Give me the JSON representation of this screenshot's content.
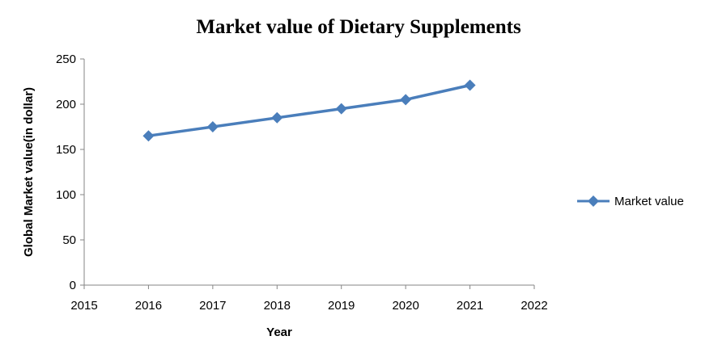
{
  "chart_data": {
    "type": "line",
    "title": "Market value of Dietary Supplements",
    "xlabel": "Year",
    "ylabel": "Global Market value(in dollar)",
    "xlim": [
      2015,
      2022
    ],
    "ylim": [
      0,
      250
    ],
    "x_ticks": [
      2015,
      2016,
      2017,
      2018,
      2019,
      2020,
      2021,
      2022
    ],
    "y_ticks": [
      0,
      50,
      100,
      150,
      200,
      250
    ],
    "grid": false,
    "legend_position": "right",
    "series": [
      {
        "name": "Market value",
        "color": "#4a7ebb",
        "marker": "diamond",
        "x": [
          2016,
          2017,
          2018,
          2019,
          2020,
          2021
        ],
        "y": [
          165,
          175,
          185,
          195,
          205,
          221
        ]
      }
    ]
  }
}
